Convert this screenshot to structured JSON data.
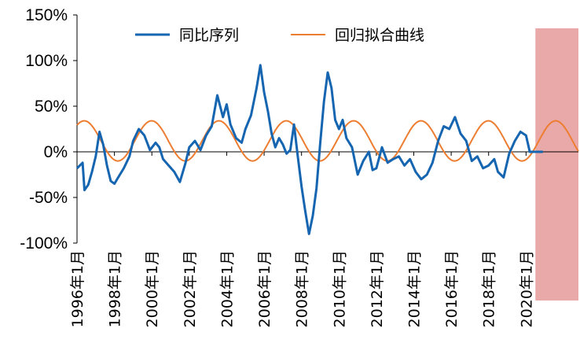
{
  "chart_data": {
    "type": "line",
    "title": "",
    "xlabel": "",
    "ylabel": "",
    "ylim": [
      -1.0,
      1.5
    ],
    "y_ticks": [
      1.5,
      1.0,
      0.5,
      0.0,
      -0.5,
      -1.0
    ],
    "y_tick_labels": [
      "150%",
      "100%",
      "50%",
      "0%",
      "-50%",
      "-100%"
    ],
    "x_range": [
      1996.0,
      2022.8
    ],
    "x_ticks": [
      1996,
      1998,
      2000,
      2002,
      2004,
      2006,
      2008,
      2010,
      2012,
      2014,
      2016,
      2018,
      2020
    ],
    "x_tick_labels": [
      "1996年1月",
      "1998年1月",
      "2000年1月",
      "2002年1月",
      "2004年1月",
      "2006年1月",
      "2008年1月",
      "2010年1月",
      "2012年1月",
      "2014年1月",
      "2016年1月",
      "2018年1月",
      "2020年1月"
    ],
    "legend": [
      "同比序列",
      "回归拟合曲线"
    ],
    "highlight": {
      "x_start": 2020.5,
      "x_end": 2022.8,
      "color": "#eaa9a9"
    },
    "series": [
      {
        "name": "同比序列",
        "color": "#1565b0",
        "x": [
          1996.0,
          1996.3,
          1996.4,
          1996.6,
          1996.8,
          1997.0,
          1997.2,
          1997.4,
          1997.6,
          1997.8,
          1998.0,
          1998.2,
          1998.5,
          1998.8,
          1999.0,
          1999.3,
          1999.6,
          1999.9,
          2000.2,
          2000.4,
          2000.6,
          2000.9,
          2001.2,
          2001.5,
          2001.8,
          2002.0,
          2002.3,
          2002.6,
          2002.9,
          2003.2,
          2003.5,
          2003.8,
          2004.0,
          2004.2,
          2004.5,
          2004.8,
          2005.0,
          2005.3,
          2005.6,
          2005.8,
          2006.0,
          2006.2,
          2006.4,
          2006.6,
          2006.8,
          2007.0,
          2007.2,
          2007.4,
          2007.6,
          2007.8,
          2008.0,
          2008.2,
          2008.4,
          2008.6,
          2008.8,
          2009.0,
          2009.2,
          2009.4,
          2009.6,
          2009.8,
          2010.0,
          2010.2,
          2010.4,
          2010.7,
          2011.0,
          2011.3,
          2011.6,
          2011.8,
          2012.0,
          2012.3,
          2012.6,
          2012.9,
          2013.2,
          2013.5,
          2013.8,
          2014.1,
          2014.4,
          2014.7,
          2015.0,
          2015.3,
          2015.6,
          2015.9,
          2016.2,
          2016.5,
          2016.8,
          2017.1,
          2017.4,
          2017.7,
          2018.0,
          2018.3,
          2018.5,
          2018.8,
          2019.1,
          2019.4,
          2019.7,
          2020.0,
          2020.2,
          2020.4,
          2020.6,
          2020.8,
          2020.9
        ],
        "y": [
          -0.18,
          -0.12,
          -0.42,
          -0.36,
          -0.22,
          -0.05,
          0.22,
          0.08,
          -0.15,
          -0.32,
          -0.35,
          -0.28,
          -0.18,
          -0.05,
          0.12,
          0.25,
          0.18,
          0.02,
          0.1,
          0.05,
          -0.08,
          -0.15,
          -0.22,
          -0.33,
          -0.12,
          0.05,
          0.12,
          0.02,
          0.18,
          0.28,
          0.62,
          0.38,
          0.52,
          0.3,
          0.15,
          0.1,
          0.25,
          0.4,
          0.7,
          0.95,
          0.65,
          0.45,
          0.2,
          0.05,
          0.15,
          0.08,
          -0.02,
          0.02,
          0.3,
          -0.05,
          -0.38,
          -0.65,
          -0.9,
          -0.7,
          -0.4,
          0.1,
          0.55,
          0.87,
          0.7,
          0.35,
          0.25,
          0.35,
          0.15,
          0.05,
          -0.25,
          -0.1,
          0.0,
          -0.2,
          -0.18,
          0.05,
          -0.12,
          -0.08,
          -0.05,
          -0.15,
          -0.08,
          -0.22,
          -0.3,
          -0.25,
          -0.12,
          0.12,
          0.28,
          0.25,
          0.38,
          0.2,
          0.12,
          -0.1,
          -0.05,
          -0.18,
          -0.15,
          -0.08,
          -0.22,
          -0.28,
          -0.02,
          0.12,
          0.22,
          0.18,
          0.0,
          0.0,
          0.0,
          0.0,
          0.0
        ]
      },
      {
        "name": "回归拟合曲线",
        "color": "#ed7d31",
        "function": "0.12 + 0.22*sin(2*pi*(x-1996)/3.6 + 0.9)"
      }
    ]
  }
}
